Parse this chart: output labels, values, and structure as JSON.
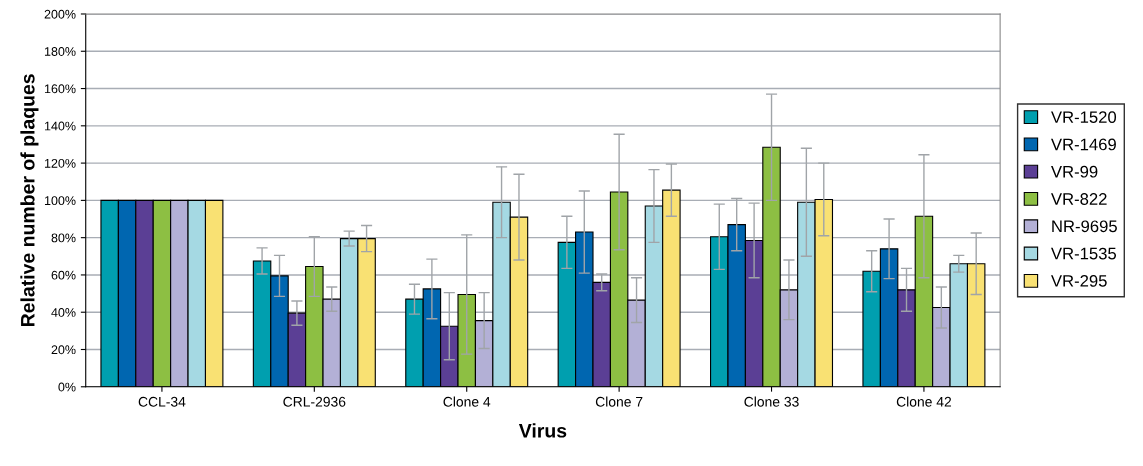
{
  "chart_data": {
    "type": "bar",
    "xlabel": "Virus",
    "ylabel": "Relative number of plaques",
    "categories": [
      "CCL-34",
      "CRL-2936",
      "Clone 4",
      "Clone 7",
      "Clone 33",
      "Clone 42"
    ],
    "series": [
      {
        "name": "VR-1520",
        "color": "#009faf",
        "values": [
          100,
          67.5,
          47,
          77.5,
          80.5,
          62
        ],
        "errors": [
          null,
          7,
          8,
          14,
          17.5,
          11
        ]
      },
      {
        "name": "VR-1469",
        "color": "#0066b0",
        "values": [
          100,
          59.5,
          52.5,
          83,
          87,
          74
        ],
        "errors": [
          null,
          11,
          16,
          22,
          14,
          16
        ]
      },
      {
        "name": "VR-99",
        "color": "#5b3f95",
        "values": [
          100,
          39.5,
          32.5,
          56,
          78.5,
          52
        ],
        "errors": [
          null,
          6.5,
          18,
          4.5,
          20,
          11.5
        ]
      },
      {
        "name": "VR-822",
        "color": "#8dbf43",
        "values": [
          100,
          64.5,
          49.5,
          104.5,
          128.5,
          91.5
        ],
        "errors": [
          null,
          16,
          32,
          31,
          28.5,
          33
        ]
      },
      {
        "name": "NR-9695",
        "color": "#b3b0d6",
        "values": [
          100,
          47,
          35.5,
          46.5,
          52,
          42.5
        ],
        "errors": [
          null,
          6.5,
          15,
          12,
          16,
          11
        ]
      },
      {
        "name": "VR-1535",
        "color": "#a5d9e3",
        "values": [
          100,
          79.5,
          99,
          97,
          99,
          66
        ],
        "errors": [
          null,
          4,
          19,
          19.5,
          29,
          4.5
        ]
      },
      {
        "name": "VR-295",
        "color": "#f9e173",
        "values": [
          100,
          79.5,
          91,
          105.5,
          100.5,
          66
        ],
        "errors": [
          null,
          7,
          23,
          14,
          19.5,
          16.5
        ]
      }
    ],
    "ylim": [
      0,
      200
    ],
    "yticks": [
      {
        "value": 0,
        "label": "0%"
      },
      {
        "value": 20,
        "label": "20%"
      },
      {
        "value": 40,
        "label": "40%"
      },
      {
        "value": 60,
        "label": "60%"
      },
      {
        "value": 80,
        "label": "80%"
      },
      {
        "value": 100,
        "label": "100%"
      },
      {
        "value": 120,
        "label": "120%"
      },
      {
        "value": 140,
        "label": "140%"
      },
      {
        "value": 160,
        "label": "160%"
      },
      {
        "value": 180,
        "label": "180%"
      },
      {
        "value": 200,
        "label": "200%"
      }
    ],
    "grid": "y",
    "legend": "right"
  }
}
